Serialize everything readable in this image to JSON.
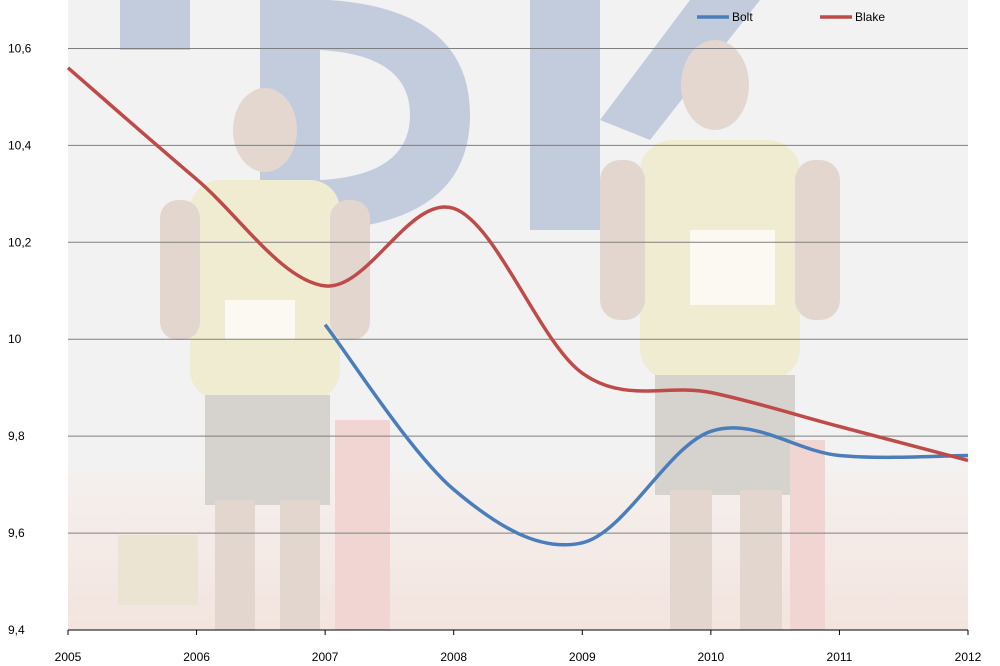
{
  "chart_data": {
    "type": "line",
    "title": "",
    "xlabel": "",
    "ylabel": "",
    "x": [
      2005,
      2006,
      2007,
      2008,
      2009,
      2010,
      2011,
      2012
    ],
    "x_tick_labels": [
      "2005",
      "2006",
      "2007",
      "2008",
      "2009",
      "2010",
      "2011",
      "2012"
    ],
    "ylim": [
      9.4,
      10.7
    ],
    "y_ticks": [
      9.4,
      9.6,
      9.8,
      10.0,
      10.2,
      10.4,
      10.6
    ],
    "y_tick_labels": [
      "9,4",
      "9,6",
      "9,8",
      "10",
      "10,2",
      "10,4",
      "10,6"
    ],
    "grid": "horizontal",
    "legend_position": "top-right",
    "smooth": true,
    "series": [
      {
        "name": "Bolt",
        "color": "#4a7ebb",
        "x": [
          2007,
          2008,
          2009,
          2010,
          2011,
          2012
        ],
        "values": [
          10.03,
          9.69,
          9.58,
          9.81,
          9.76,
          9.76
        ]
      },
      {
        "name": "Blake",
        "color": "#be4b48",
        "x": [
          2005,
          2006,
          2007,
          2008,
          2009,
          2010,
          2011,
          2012
        ],
        "values": [
          10.56,
          10.33,
          10.11,
          10.27,
          9.93,
          9.89,
          9.82,
          9.75
        ]
      }
    ],
    "background_image": "faded photo of two Jamaican sprinters in yellow and green kits standing on a track in front of a large blue TDK sign"
  }
}
